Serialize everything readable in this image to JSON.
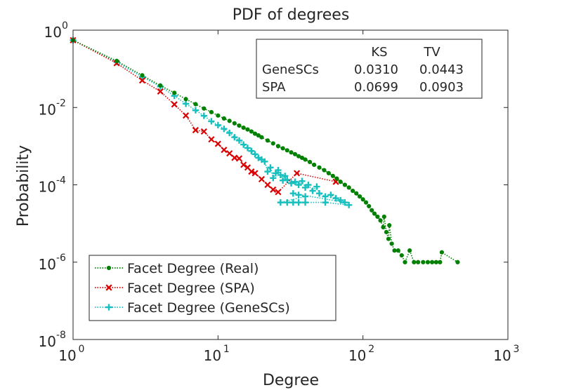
{
  "chart_data": {
    "type": "scatter",
    "title": "PDF of degrees",
    "xlabel": "Degree",
    "ylabel": "Probability",
    "xscale": "log",
    "yscale": "log",
    "xlim": [
      1,
      1000
    ],
    "ylim": [
      1e-08,
      1
    ],
    "x_tick_labels": [
      {
        "value": 1,
        "base": "10",
        "exp": "0"
      },
      {
        "value": 10,
        "base": "10",
        "exp": "1"
      },
      {
        "value": 100,
        "base": "10",
        "exp": "2"
      },
      {
        "value": 1000,
        "base": "10",
        "exp": "3"
      }
    ],
    "y_tick_labels": [
      {
        "value": 1,
        "base": "10",
        "exp": "0"
      },
      {
        "value": 0.01,
        "base": "10",
        "exp": "-2"
      },
      {
        "value": 0.0001,
        "base": "10",
        "exp": "-4"
      },
      {
        "value": 1e-06,
        "base": "10",
        "exp": "-6"
      },
      {
        "value": 1e-08,
        "base": "10",
        "exp": "-8"
      }
    ],
    "legend_position": "bottom-left",
    "stats_table": {
      "headers": [
        "",
        "KS",
        "TV"
      ],
      "rows": [
        [
          "GeneSCs",
          "0.0310",
          "0.0443"
        ],
        [
          "SPA",
          "0.0699",
          "0.0903"
        ]
      ]
    },
    "series": [
      {
        "name": "Facet Degree (Real)",
        "color": "#008000",
        "marker": "circle",
        "points": [
          [
            1,
            0.55
          ],
          [
            2,
            0.16
          ],
          [
            3,
            0.068
          ],
          [
            4,
            0.037
          ],
          [
            5,
            0.024
          ],
          [
            6,
            0.0165
          ],
          [
            7,
            0.0122
          ],
          [
            8,
            0.0094
          ],
          [
            9,
            0.0076
          ],
          [
            10,
            0.0062
          ],
          [
            11,
            0.0052
          ],
          [
            12,
            0.0045
          ],
          [
            13,
            0.0039
          ],
          [
            14,
            0.0034
          ],
          [
            15,
            0.003
          ],
          [
            16,
            0.0027
          ],
          [
            17,
            0.0024
          ],
          [
            18,
            0.0021
          ],
          [
            19,
            0.0019
          ],
          [
            20,
            0.0017
          ],
          [
            22,
            0.0014
          ],
          [
            24,
            0.00118
          ],
          [
            26,
            0.001
          ],
          [
            28,
            0.00088
          ],
          [
            30,
            0.00078
          ],
          [
            32,
            0.00069
          ],
          [
            34,
            0.00062
          ],
          [
            36,
            0.00055
          ],
          [
            38,
            0.0005
          ],
          [
            40,
            0.00045
          ],
          [
            43,
            0.00039
          ],
          [
            46,
            0.00033
          ],
          [
            50,
            0.00028
          ],
          [
            54,
            0.00024
          ],
          [
            58,
            0.0002
          ],
          [
            62,
            0.00017
          ],
          [
            66,
            0.000145
          ],
          [
            70,
            0.00012
          ],
          [
            75,
            0.0001
          ],
          [
            80,
            8.5e-05
          ],
          [
            85,
            7e-05
          ],
          [
            90,
            6e-05
          ],
          [
            95,
            5e-05
          ],
          [
            100,
            4.2e-05
          ],
          [
            105,
            3.5e-05
          ],
          [
            110,
            2.8e-05
          ],
          [
            115,
            2.2e-05
          ],
          [
            120,
            1.8e-05
          ],
          [
            126,
            1.5e-05
          ],
          [
            132,
            1.2e-05
          ],
          [
            138,
            8e-06
          ],
          [
            140,
            1.5e-05
          ],
          [
            145,
            6e-06
          ],
          [
            150,
            4e-06
          ],
          [
            152,
            9e-06
          ],
          [
            158,
            3e-06
          ],
          [
            165,
            2e-06
          ],
          [
            175,
            2e-06
          ],
          [
            185,
            1.5e-06
          ],
          [
            195,
            1e-06
          ],
          [
            210,
            2e-06
          ],
          [
            225,
            1e-06
          ],
          [
            240,
            1e-06
          ],
          [
            260,
            1e-06
          ],
          [
            280,
            1e-06
          ],
          [
            300,
            1e-06
          ],
          [
            320,
            1e-06
          ],
          [
            340,
            1e-06
          ],
          [
            350,
            1.8e-06
          ],
          [
            450,
            1e-06
          ]
        ]
      },
      {
        "name": "Facet Degree (SPA)",
        "color": "#dd0000",
        "marker": "x",
        "points": [
          [
            1,
            0.55
          ],
          [
            2,
            0.14
          ],
          [
            3,
            0.05
          ],
          [
            4,
            0.026
          ],
          [
            5,
            0.012
          ],
          [
            6,
            0.0062
          ],
          [
            7,
            0.0026
          ],
          [
            8,
            0.0024
          ],
          [
            9,
            0.0015
          ],
          [
            10,
            0.00115
          ],
          [
            11,
            0.0008
          ],
          [
            12,
            0.00065
          ],
          [
            13,
            0.0005
          ],
          [
            14,
            0.00048
          ],
          [
            15,
            0.00033
          ],
          [
            16,
            0.00028
          ],
          [
            17,
            0.00022
          ],
          [
            18,
            0.0002
          ],
          [
            20,
            0.00014
          ],
          [
            22,
            0.0001
          ],
          [
            24,
            7.5e-05
          ],
          [
            26,
            6.5e-05
          ],
          [
            35,
            0.0002
          ],
          [
            65,
            0.00012
          ]
        ]
      },
      {
        "name": "Facet Degree (GeneSCs)",
        "color": "#17bfbf",
        "marker": "plus",
        "points": [
          [
            1,
            0.55
          ],
          [
            2,
            0.15
          ],
          [
            3,
            0.062
          ],
          [
            4,
            0.035
          ],
          [
            5,
            0.02
          ],
          [
            6,
            0.0125
          ],
          [
            7,
            0.0085
          ],
          [
            8,
            0.0061
          ],
          [
            9,
            0.0044
          ],
          [
            10,
            0.0035
          ],
          [
            11,
            0.0028
          ],
          [
            12,
            0.0022
          ],
          [
            13,
            0.0017
          ],
          [
            14,
            0.0014
          ],
          [
            15,
            0.0011
          ],
          [
            16,
            0.0009
          ],
          [
            17,
            0.00075
          ],
          [
            18,
            0.00062
          ],
          [
            19,
            0.0005
          ],
          [
            20,
            0.00045
          ],
          [
            21,
            0.0004
          ],
          [
            22,
            0.00022
          ],
          [
            23,
            0.00028
          ],
          [
            24,
            0.00015
          ],
          [
            25,
            0.0002
          ],
          [
            26,
            0.00024
          ],
          [
            27,
            0.00018
          ],
          [
            28,
            0.00013
          ],
          [
            29,
            0.00017
          ],
          [
            30,
            0.000135
          ],
          [
            32,
            0.00011
          ],
          [
            34,
            0.00012
          ],
          [
            36,
            0.0001
          ],
          [
            38,
            0.000125
          ],
          [
            40,
            8.5e-05
          ],
          [
            42,
            0.0001
          ],
          [
            45,
            7e-05
          ],
          [
            48,
            9e-05
          ],
          [
            50,
            6e-05
          ],
          [
            55,
            5e-05
          ],
          [
            60,
            5.5e-05
          ],
          [
            65,
            4.5e-05
          ],
          [
            70,
            4e-05
          ],
          [
            75,
            3.5e-05
          ],
          [
            33,
            6e-05
          ],
          [
            36,
            5.5e-05
          ],
          [
            40,
            5e-05
          ],
          [
            27,
            3.5e-05
          ],
          [
            30,
            3.5e-05
          ],
          [
            33,
            3.5e-05
          ],
          [
            36,
            3.5e-05
          ],
          [
            40,
            3.5e-05
          ],
          [
            55,
            3.5e-05
          ],
          [
            80,
            3e-05
          ]
        ]
      }
    ]
  }
}
